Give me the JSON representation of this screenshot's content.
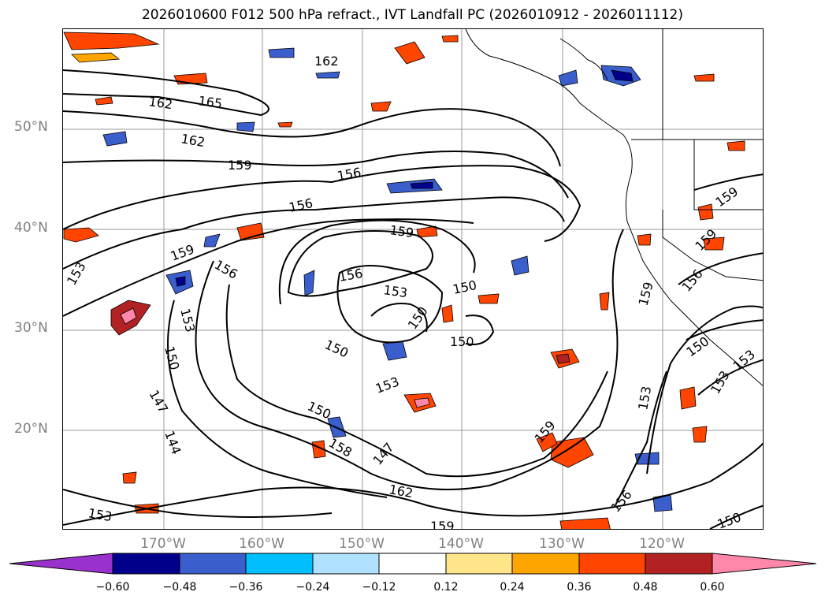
{
  "title": "2026010600 F012 500 hPa refract., IVT Landfall PC (2026010912 - 2026011112)",
  "map": {
    "lat_labels": [
      "50°N",
      "40°N",
      "30°N",
      "20°N"
    ],
    "lon_labels": [
      "170°W",
      "160°W",
      "150°W",
      "140°W",
      "130°W",
      "120°W"
    ],
    "contour_labels": [
      "162",
      "162",
      "165",
      "162",
      "159",
      "156",
      "156",
      "159",
      "159",
      "156",
      "156",
      "153",
      "150",
      "150",
      "150",
      "153",
      "150",
      "153",
      "150",
      "147",
      "144",
      "150",
      "153",
      "158",
      "147",
      "162",
      "159",
      "153",
      "159",
      "156",
      "156",
      "159",
      "159",
      "159",
      "150",
      "153",
      "153",
      "150",
      "153"
    ]
  },
  "colorbar": {
    "ticks": [
      "−0.60",
      "−0.48",
      "−0.36",
      "−0.24",
      "−0.12",
      "0.12",
      "0.24",
      "0.36",
      "0.48",
      "0.60"
    ],
    "colors": [
      "#9932cc",
      "#00008b",
      "#3a5fcd",
      "#00bfff",
      "#b0e2ff",
      "#ffffff",
      "#ffe58a",
      "#ffa500",
      "#ff4500",
      "#b22222",
      "#ff88aa"
    ]
  }
}
